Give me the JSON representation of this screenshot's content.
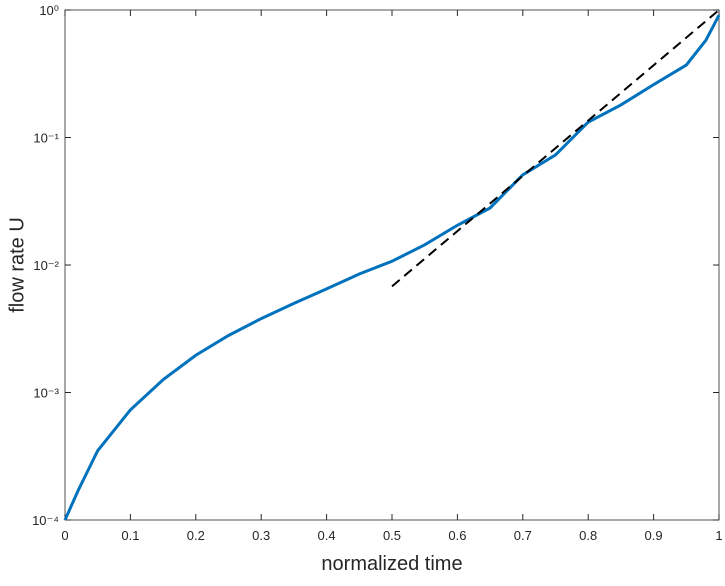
{
  "chart_data": {
    "type": "line",
    "xlabel": "normalized time",
    "ylabel": "flow rate U",
    "xlim": [
      0,
      1
    ],
    "xticks": [
      0,
      0.1,
      0.2,
      0.3,
      0.4,
      0.5,
      0.6,
      0.7,
      0.8,
      0.9,
      1
    ],
    "ylim": [
      0.0001,
      1
    ],
    "log_y": true,
    "yticks": [
      {
        "value": 0.0001,
        "label": "10⁻⁴"
      },
      {
        "value": 0.001,
        "label": "10⁻³"
      },
      {
        "value": 0.01,
        "label": "10⁻²"
      },
      {
        "value": 0.1,
        "label": "10⁻¹"
      },
      {
        "value": 1,
        "label": "10⁰"
      }
    ],
    "series": [
      {
        "color": "#0072bd",
        "style": "solid",
        "x": [
          0,
          0.02,
          0.05,
          0.1,
          0.15,
          0.2,
          0.25,
          0.3,
          0.35,
          0.4,
          0.45,
          0.5,
          0.55,
          0.6,
          0.65,
          0.7,
          0.75,
          0.8,
          0.85,
          0.9,
          0.95,
          0.98,
          1
        ],
        "values": [
          0.0001,
          0.00017,
          0.00035,
          0.00073,
          0.00126,
          0.00196,
          0.0028,
          0.0038,
          0.005,
          0.0065,
          0.0085,
          0.0107,
          0.0144,
          0.0205,
          0.028,
          0.051,
          0.073,
          0.132,
          0.18,
          0.26,
          0.37,
          0.58,
          0.91
        ]
      },
      {
        "color": "#000000",
        "style": "dashed",
        "x": [
          0.5,
          1
        ],
        "values": [
          0.0068,
          1
        ]
      }
    ]
  }
}
